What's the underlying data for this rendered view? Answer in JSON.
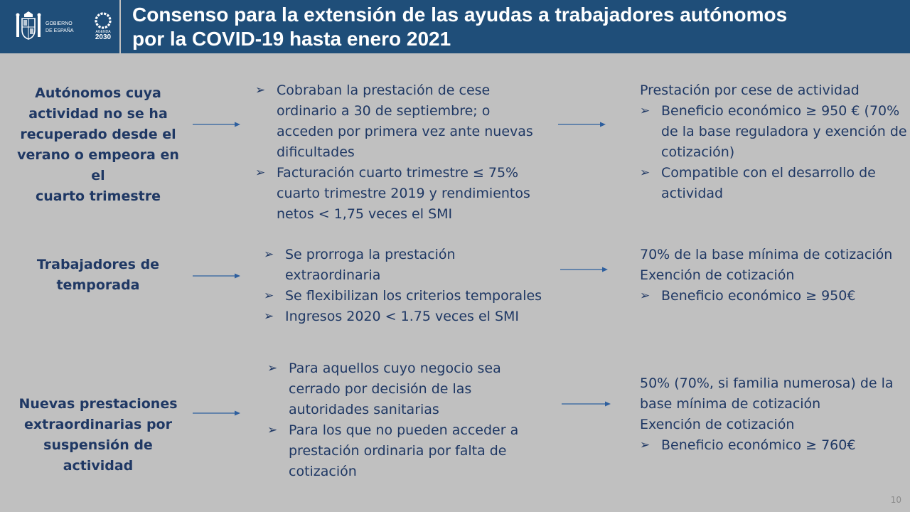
{
  "header": {
    "title_line1": "Consenso para la extensión de las ayudas a trabajadores autónomos",
    "title_line2": "por la COVID-19 hasta enero 2021",
    "gobierno_line1": "GOBIERNO",
    "gobierno_line2": "DE ESPAÑA",
    "agenda_label": "AGENDA",
    "agenda_year": "2030"
  },
  "bullet_glyph": "➢",
  "rows": [
    {
      "label": [
        "Autónomos cuya",
        "actividad no se ha",
        "recuperado desde el",
        "verano o empeora en el",
        "cuarto trimestre"
      ],
      "conditions": [
        [
          "Cobraban la prestación de cese",
          "ordinario a 30 de septiembre; o",
          "acceden por primera vez ante nuevas",
          "dificultades"
        ],
        [
          "Facturación cuarto trimestre ≤ 75%",
          "cuarto trimestre 2019 y rendimientos",
          "netos < 1,75 veces el SMI"
        ]
      ],
      "benefits_intro": [
        "Prestación por cese de actividad"
      ],
      "benefits": [
        [
          "Beneficio económico ≥ 950 € (70%",
          "de la base reguladora y exención de",
          "cotización)"
        ],
        [
          "Compatible con el desarrollo de",
          "actividad"
        ]
      ]
    },
    {
      "label": [
        "Trabajadores de",
        "temporada"
      ],
      "conditions": [
        [
          "Se prorroga la prestación",
          "extraordinaria"
        ],
        [
          "Se flexibilizan los criterios temporales"
        ],
        [
          "Ingresos 2020 < 1.75 veces el SMI"
        ]
      ],
      "benefits_intro": [
        "70% de la base mínima de cotización",
        "Exención de cotización"
      ],
      "benefits": [
        [
          "Beneficio económico ≥ 950€"
        ]
      ]
    },
    {
      "label": [
        "Nuevas prestaciones",
        "extraordinarias por",
        "suspensión de actividad"
      ],
      "conditions": [
        [
          "Para aquellos cuyo negocio sea",
          "cerrado por decisión de las",
          "autoridades sanitarias"
        ],
        [
          "Para los que no pueden acceder a",
          "prestación ordinaria por falta de",
          "cotización"
        ]
      ],
      "benefits_intro": [
        "50% (70%, si familia numerosa) de la",
        "base mínima de cotización",
        "Exención de cotización"
      ],
      "benefits": [
        [
          "Beneficio económico ≥ 760€"
        ]
      ]
    }
  ],
  "page_number": "10",
  "colors": {
    "header_bg": "#1f4e79",
    "slide_bg": "#c0c0c0",
    "text": "#1f3864",
    "arrow": "#2e5f9e"
  }
}
